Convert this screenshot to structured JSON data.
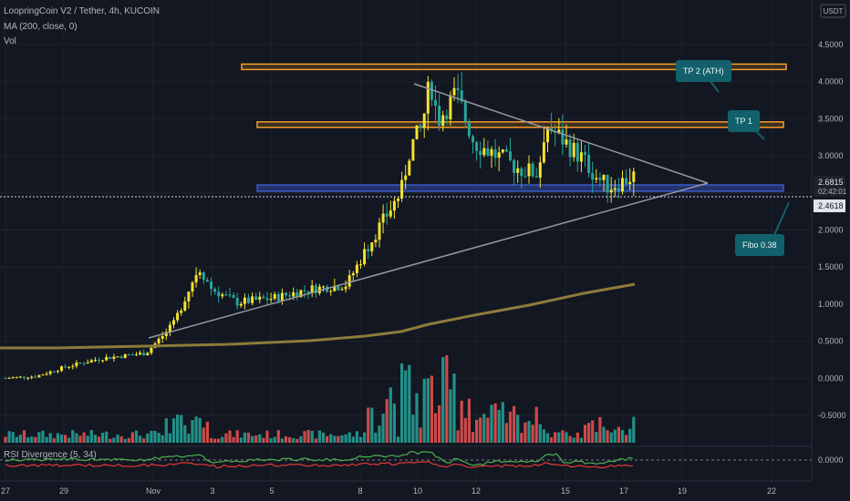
{
  "header": {
    "title": "LoopringCoin V2 / Tether, 4h, KUCOIN",
    "ma_label": "MA (200, close, 0)",
    "vol_label": "Vol",
    "currency": "USDT"
  },
  "rsi": {
    "label": "RSI Divergence (5, 34)",
    "zero_label": "0.0000"
  },
  "annotations": {
    "tp2": "TP 2 (ATH)",
    "tp1": "TP 1",
    "fibo": "Fibo 0.38"
  },
  "price_axis": {
    "ticks": [
      "4.5000",
      "4.0000",
      "3.5000",
      "3.0000",
      "2.5000",
      "2.0000",
      "1.5000",
      "1.0000",
      "0.5000",
      "0.0000",
      "-0.5000"
    ],
    "current_price": "2.6815",
    "countdown": "02:42:01",
    "line_price": "2.4618"
  },
  "time_axis": {
    "ticks": [
      "27",
      "29",
      "Nov",
      "3",
      "5",
      "8",
      "10",
      "12",
      "15",
      "17",
      "19",
      "22"
    ]
  },
  "colors": {
    "up": "#f5e22e",
    "down": "#26a69a",
    "vol_up": "#26a69a",
    "vol_down": "#ef5350",
    "ma": "#8d7b3a",
    "zone_orange": "#f59d2a",
    "zone_blue": "#3a59c6"
  },
  "chart_data": {
    "type": "candlestick",
    "interval": "4h",
    "y_range": [
      0,
      4.6
    ],
    "levels": {
      "tp2_ath": 3.9,
      "tp1": 3.25,
      "fibo_0_38": 2.58,
      "current": 2.4618
    },
    "ma200": [
      {
        "x": "Oct 27",
        "y": 0.42
      },
      {
        "x": "Oct 29",
        "y": 0.44
      },
      {
        "x": "Nov 1",
        "y": 0.47
      },
      {
        "x": "Nov 3",
        "y": 0.5
      },
      {
        "x": "Nov 5",
        "y": 0.52
      },
      {
        "x": "Nov 8",
        "y": 0.61
      },
      {
        "x": "Nov 10",
        "y": 0.76
      },
      {
        "x": "Nov 12",
        "y": 0.88
      },
      {
        "x": "Nov 15",
        "y": 1.05
      },
      {
        "x": "Nov 17",
        "y": 1.27
      }
    ],
    "close_series": [
      {
        "x": "Oct 27",
        "y": 0.4
      },
      {
        "x": "Oct 29",
        "y": 0.52
      },
      {
        "x": "Nov 1",
        "y": 0.65
      },
      {
        "x": "Nov 2",
        "y": 1.65
      },
      {
        "x": "Nov 3",
        "y": 1.35
      },
      {
        "x": "Nov 5",
        "y": 1.25
      },
      {
        "x": "Nov 7",
        "y": 1.45
      },
      {
        "x": "Nov 8",
        "y": 2.0
      },
      {
        "x": "Nov 9",
        "y": 3.0
      },
      {
        "x": "Nov 10",
        "y": 3.5
      },
      {
        "x": "Nov 12",
        "y": 3.0
      },
      {
        "x": "Nov 14",
        "y": 2.75
      },
      {
        "x": "Nov 15",
        "y": 3.15
      },
      {
        "x": "Nov 16",
        "y": 2.6
      },
      {
        "x": "Nov 17",
        "y": 2.68
      }
    ]
  }
}
